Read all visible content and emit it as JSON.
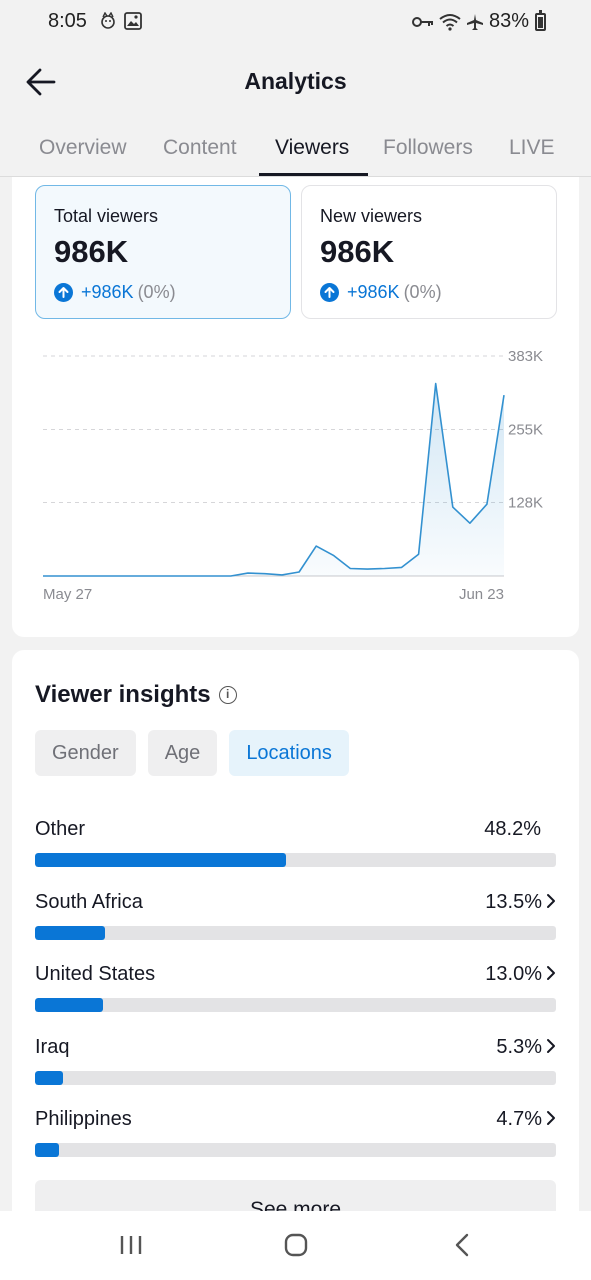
{
  "status": {
    "time": "8:05",
    "battery": "83%"
  },
  "header": {
    "title": "Analytics"
  },
  "tabs": [
    {
      "label": "Overview"
    },
    {
      "label": "Content"
    },
    {
      "label": "Viewers"
    },
    {
      "label": "Followers"
    },
    {
      "label": "LIVE"
    }
  ],
  "stats": {
    "total": {
      "label": "Total viewers",
      "value": "986K",
      "change": "+986K",
      "pct": "(0%)"
    },
    "new": {
      "label": "New viewers",
      "value": "986K",
      "change": "+986K",
      "pct": "(0%)"
    }
  },
  "chart_data": {
    "type": "area",
    "ytick_labels": [
      "383K",
      "255K",
      "128K"
    ],
    "yticks": [
      383,
      255,
      128
    ],
    "ylim": [
      0,
      383
    ],
    "xtick_labels": [
      "May 27",
      "Jun 23"
    ],
    "x": [
      "May 27",
      "May 28",
      "May 29",
      "May 30",
      "May 31",
      "Jun 1",
      "Jun 2",
      "Jun 3",
      "Jun 4",
      "Jun 5",
      "Jun 6",
      "Jun 7",
      "Jun 8",
      "Jun 9",
      "Jun 10",
      "Jun 11",
      "Jun 12",
      "Jun 13",
      "Jun 14",
      "Jun 15",
      "Jun 16",
      "Jun 17",
      "Jun 18",
      "Jun 19",
      "Jun 20",
      "Jun 21",
      "Jun 22",
      "Jun 23"
    ],
    "series": [
      {
        "values": [
          0,
          0,
          0,
          0,
          0,
          0,
          0,
          0,
          0,
          0,
          0,
          0,
          5,
          4,
          2,
          7,
          52,
          36,
          13,
          12,
          13,
          15,
          38,
          335,
          120,
          92,
          125,
          315
        ]
      }
    ],
    "grid": true,
    "color": "#3391d0"
  },
  "insights": {
    "title": "Viewer insights",
    "chips": [
      {
        "label": "Gender"
      },
      {
        "label": "Age"
      },
      {
        "label": "Locations"
      }
    ],
    "locations": [
      {
        "name": "Other",
        "pct": "48.2%",
        "value": 48.2,
        "chevron": false
      },
      {
        "name": "South Africa",
        "pct": "13.5%",
        "value": 13.5,
        "chevron": true
      },
      {
        "name": "United States",
        "pct": "13.0%",
        "value": 13.0,
        "chevron": true
      },
      {
        "name": "Iraq",
        "pct": "5.3%",
        "value": 5.3,
        "chevron": true
      },
      {
        "name": "Philippines",
        "pct": "4.7%",
        "value": 4.7,
        "chevron": true
      }
    ],
    "see_more": "See more"
  },
  "colors": {
    "accent": "#0a76d6",
    "line": "#3391d0"
  }
}
